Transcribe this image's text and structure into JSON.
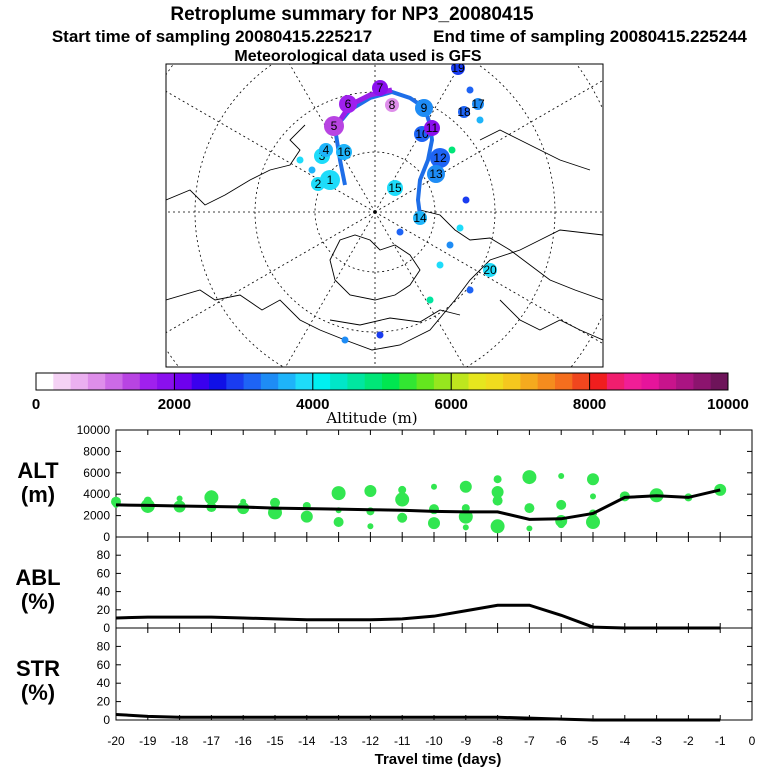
{
  "header": {
    "title": "Retroplume summary for NP3_20080415",
    "start_time": "Start time of sampling 20080415.225217",
    "end_time": "End time of sampling 20080415.225244",
    "met_data": "Meteorological data used is GFS"
  },
  "colorbar": {
    "label": "Altitude (m)",
    "tick_labels": [
      "0",
      "2000",
      "4000",
      "6000",
      "8000",
      "10000"
    ],
    "colors": [
      "#ffffff",
      "#f5d2f5",
      "#ebb0f0",
      "#de8eea",
      "#cc6ae6",
      "#b844e2",
      "#a020ee",
      "#8a10ee",
      "#6e00ee",
      "#3a00ee",
      "#1010e6",
      "#1a3cf0",
      "#1e64f5",
      "#1e8cf5",
      "#1eb4fa",
      "#1edcfa",
      "#00f0f0",
      "#00e6c8",
      "#00e6a0",
      "#00e678",
      "#00e650",
      "#32e632",
      "#64e61e",
      "#96e61e",
      "#bee61e",
      "#e6e61e",
      "#f0dc1e",
      "#f5c81e",
      "#f5aa1e",
      "#f58c1e",
      "#f56e1e",
      "#f0461e",
      "#f01e1e",
      "#f01e6e",
      "#f01e96",
      "#e6149b",
      "#c8148c",
      "#aa1482",
      "#8c146e",
      "#6e145a"
    ]
  },
  "map": {
    "trajectory_color_a": "#9a1ee8",
    "trajectory_color_b": "#1e6ee8",
    "points": [
      {
        "label": "1",
        "color": "#1edcfa"
      },
      {
        "label": "2",
        "color": "#1edcfa"
      },
      {
        "label": "3",
        "color": "#1edcfa"
      },
      {
        "label": "4",
        "color": "#1eb4fa"
      },
      {
        "label": "5",
        "color": "#b844e2"
      },
      {
        "label": "6",
        "color": "#a020ee"
      },
      {
        "label": "7",
        "color": "#8a10ee"
      },
      {
        "label": "8",
        "color": "#de8eea"
      },
      {
        "label": "9",
        "color": "#1e8cf5"
      },
      {
        "label": "10",
        "color": "#1e64f5"
      },
      {
        "label": "11",
        "color": "#8a10ee"
      },
      {
        "label": "12",
        "color": "#1e64f5"
      },
      {
        "label": "13",
        "color": "#1e8cf5"
      },
      {
        "label": "14",
        "color": "#1eb4fa"
      },
      {
        "label": "15",
        "color": "#1edcfa"
      },
      {
        "label": "16",
        "color": "#1eb4fa"
      },
      {
        "label": "17",
        "color": "#1e8cf5"
      },
      {
        "label": "18",
        "color": "#1e64f5"
      },
      {
        "label": "19",
        "color": "#1a3cf0"
      },
      {
        "label": "20",
        "color": "#1edcfa"
      }
    ]
  },
  "chart_data": [
    {
      "type": "line",
      "panel": "ALT",
      "ylabel_line1": "ALT",
      "ylabel_line2": "(m)",
      "ylim": [
        0,
        10000
      ],
      "y_ticks": [
        "0",
        "2000",
        "4000",
        "6000",
        "8000",
        "10000"
      ],
      "x": [
        -20,
        -19,
        -18,
        -17,
        -16,
        -15,
        -14,
        -13,
        -12,
        -11,
        -10,
        -9,
        -8,
        -7,
        -6,
        -5,
        -4,
        -3,
        -2,
        -1
      ],
      "values": [
        3000,
        2950,
        2900,
        2850,
        2800,
        2700,
        2650,
        2600,
        2550,
        2500,
        2400,
        2350,
        2350,
        1650,
        1700,
        2200,
        3700,
        3850,
        3700,
        4400
      ],
      "scatter_points": [
        [
          -20,
          3000
        ],
        [
          -20,
          3300
        ],
        [
          -19,
          2900
        ],
        [
          -19,
          3400
        ],
        [
          -18,
          2850
        ],
        [
          -18,
          3600
        ],
        [
          -17,
          2800
        ],
        [
          -17,
          3700
        ],
        [
          -17,
          4000
        ],
        [
          -16,
          2700
        ],
        [
          -16,
          3300
        ],
        [
          -15,
          3200
        ],
        [
          -15,
          2300
        ],
        [
          -14,
          2900
        ],
        [
          -14,
          1900
        ],
        [
          -13,
          2500
        ],
        [
          -13,
          1400
        ],
        [
          -13,
          4100
        ],
        [
          -12,
          2400
        ],
        [
          -12,
          4300
        ],
        [
          -12,
          1000
        ],
        [
          -11,
          1800
        ],
        [
          -11,
          3500
        ],
        [
          -11,
          4400
        ],
        [
          -10,
          1300
        ],
        [
          -10,
          4700
        ],
        [
          -10,
          2600
        ],
        [
          -9,
          1900
        ],
        [
          -9,
          2700
        ],
        [
          -9,
          4700
        ],
        [
          -9,
          900
        ],
        [
          -8,
          3400
        ],
        [
          -8,
          1000
        ],
        [
          -8,
          5400
        ],
        [
          -8,
          4200
        ],
        [
          -7,
          800
        ],
        [
          -7,
          2700
        ],
        [
          -7,
          5600
        ],
        [
          -6,
          1200
        ],
        [
          -6,
          1500
        ],
        [
          -6,
          5700
        ],
        [
          -6,
          3000
        ],
        [
          -5,
          1400
        ],
        [
          -5,
          2200
        ],
        [
          -5,
          5400
        ],
        [
          -5,
          3800
        ],
        [
          -4,
          3800
        ],
        [
          -3,
          3900
        ],
        [
          -2,
          3700
        ],
        [
          -1,
          4400
        ]
      ],
      "scatter_color": "#32e650"
    },
    {
      "type": "line",
      "panel": "ABL",
      "ylabel_line1": "ABL",
      "ylabel_line2": "(%)",
      "ylim": [
        0,
        100
      ],
      "y_ticks": [
        "0",
        "20",
        "40",
        "60",
        "80"
      ],
      "x": [
        -20,
        -19,
        -18,
        -17,
        -16,
        -15,
        -14,
        -13,
        -12,
        -11,
        -10,
        -9,
        -8,
        -7,
        -6,
        -5,
        -4,
        -3,
        -2,
        -1
      ],
      "values": [
        11,
        12,
        12,
        12,
        11,
        10,
        9,
        9,
        9,
        10,
        13,
        19,
        25,
        25,
        14,
        1,
        0,
        0,
        0,
        0
      ]
    },
    {
      "type": "line",
      "panel": "STR",
      "ylabel_line1": "STR",
      "ylabel_line2": "(%)",
      "ylim": [
        0,
        100
      ],
      "y_ticks": [
        "0",
        "20",
        "40",
        "60",
        "80"
      ],
      "x": [
        -20,
        -19,
        -18,
        -17,
        -16,
        -15,
        -14,
        -13,
        -12,
        -11,
        -10,
        -9,
        -8,
        -7,
        -6,
        -5,
        -4,
        -3,
        -2,
        -1
      ],
      "values": [
        6,
        4,
        3,
        3,
        3,
        3,
        3,
        3,
        3,
        3,
        3,
        3,
        3,
        2,
        1,
        0,
        0,
        0,
        0,
        0
      ]
    }
  ],
  "x_axis": {
    "label": "Travel time (days)",
    "ticks": [
      "-20",
      "-19",
      "-18",
      "-17",
      "-16",
      "-15",
      "-14",
      "-13",
      "-12",
      "-11",
      "-10",
      "-9",
      "-8",
      "-7",
      "-6",
      "-5",
      "-4",
      "-3",
      "-2",
      "-1",
      "0"
    ],
    "range": [
      -20,
      0
    ]
  }
}
